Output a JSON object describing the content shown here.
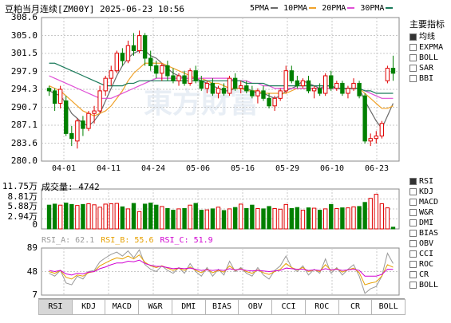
{
  "title": "豆粕当月连续[ZM00Y] 2025-06-23 10:56",
  "ma_legend": [
    {
      "label": "5PMA",
      "color": "#6a6a6a"
    },
    {
      "label": "10PMA",
      "color": "#f0a22a"
    },
    {
      "label": "20PMA",
      "color": "#e04fd6"
    },
    {
      "label": "30PMA",
      "color": "#1a7a5a"
    }
  ],
  "colors": {
    "up": "#e00000",
    "down": "#008000",
    "grid": "#c8c8c8",
    "axis": "#888"
  },
  "indicators_header": "主要指标",
  "indicators": [
    {
      "label": "均线",
      "checked": true
    },
    {
      "label": "EXPMA",
      "checked": false
    },
    {
      "label": "BOLL",
      "checked": false
    },
    {
      "label": "SAR",
      "checked": false
    },
    {
      "label": "BBI",
      "checked": false
    }
  ],
  "sub_indicators": [
    {
      "label": "RSI",
      "checked": true
    },
    {
      "label": "KDJ",
      "checked": false
    },
    {
      "label": "MACD",
      "checked": false
    },
    {
      "label": "W&R",
      "checked": false
    },
    {
      "label": "DMI",
      "checked": false
    },
    {
      "label": "BIAS",
      "checked": false
    },
    {
      "label": "OBV",
      "checked": false
    },
    {
      "label": "CCI",
      "checked": false
    },
    {
      "label": "ROC",
      "checked": false
    },
    {
      "label": "CR",
      "checked": false
    },
    {
      "label": "BOLL",
      "checked": false
    }
  ],
  "price_axis": [
    "308.6",
    "305.0",
    "301.5",
    "297.9",
    "294.3",
    "290.7",
    "287.1",
    "283.6",
    "280.0"
  ],
  "date_axis": [
    "04-01",
    "04-11",
    "04-24",
    "05-06",
    "05-16",
    "05-29",
    "06-10",
    "06-23"
  ],
  "volume_axis": [
    "11.75万",
    "8.81万",
    "5.88万",
    "2.94万",
    "0"
  ],
  "volume_label": "成交量: 4742",
  "rsi_axis": [
    "89",
    "48",
    "7"
  ],
  "rsi_legend": [
    {
      "label": "RSI_A: 62.1",
      "color": "#999999"
    },
    {
      "label": "RSI_B: 55.6",
      "color": "#e6a000"
    },
    {
      "label": "RSI_C: 51.9",
      "color": "#d100d1"
    }
  ],
  "tabs": [
    "RSI",
    "KDJ",
    "MACD",
    "W&R",
    "DMI",
    "BIAS",
    "OBV",
    "CCI",
    "ROC",
    "CR",
    "BOLL"
  ],
  "chart_data": {
    "type": "candlestick",
    "price_range": [
      280.0,
      308.6
    ],
    "candles": [
      [
        294.5,
        295.0,
        293.0,
        294.0
      ],
      [
        294.0,
        294.5,
        290.0,
        291.5
      ],
      [
        291.5,
        295.0,
        290.5,
        294.3
      ],
      [
        292.0,
        293.0,
        285.0,
        285.5
      ],
      [
        285.5,
        287.0,
        283.0,
        284.5
      ],
      [
        284.0,
        288.5,
        282.5,
        288.0
      ],
      [
        288.0,
        289.0,
        285.0,
        286.5
      ],
      [
        286.5,
        290.0,
        286.0,
        289.5
      ],
      [
        289.5,
        291.0,
        287.5,
        290.0
      ],
      [
        290.0,
        295.0,
        289.5,
        294.0
      ],
      [
        294.0,
        297.0,
        293.0,
        296.5
      ],
      [
        296.5,
        299.0,
        295.0,
        298.0
      ],
      [
        298.0,
        302.0,
        297.5,
        301.5
      ],
      [
        301.5,
        302.5,
        299.0,
        300.0
      ],
      [
        300.0,
        304.0,
        299.5,
        303.0
      ],
      [
        303.0,
        305.5,
        301.0,
        302.0
      ],
      [
        302.0,
        306.0,
        301.5,
        305.0
      ],
      [
        305.0,
        305.5,
        299.0,
        300.5
      ],
      [
        300.5,
        302.0,
        298.0,
        299.0
      ],
      [
        299.0,
        300.0,
        296.5,
        297.5
      ],
      [
        297.5,
        299.5,
        296.0,
        299.0
      ],
      [
        299.0,
        300.0,
        296.0,
        297.0
      ],
      [
        297.0,
        298.5,
        295.5,
        296.0
      ],
      [
        296.0,
        297.5,
        295.0,
        297.0
      ],
      [
        297.0,
        298.0,
        295.0,
        295.5
      ],
      [
        295.5,
        298.5,
        295.0,
        298.0
      ],
      [
        298.0,
        299.0,
        295.5,
        296.0
      ],
      [
        296.0,
        297.0,
        294.0,
        294.5
      ],
      [
        294.5,
        296.0,
        293.5,
        295.5
      ],
      [
        295.5,
        296.5,
        293.0,
        293.5
      ],
      [
        293.5,
        295.0,
        292.5,
        294.5
      ],
      [
        294.5,
        295.5,
        293.0,
        293.5
      ],
      [
        293.5,
        297.0,
        293.0,
        296.5
      ],
      [
        296.5,
        297.5,
        294.0,
        294.5
      ],
      [
        294.5,
        296.0,
        293.5,
        295.0
      ],
      [
        295.0,
        296.0,
        293.5,
        294.0
      ],
      [
        294.0,
        295.0,
        292.5,
        293.0
      ],
      [
        293.0,
        294.5,
        291.5,
        294.0
      ],
      [
        294.0,
        295.0,
        292.0,
        292.5
      ],
      [
        292.5,
        293.5,
        290.5,
        291.0
      ],
      [
        291.0,
        293.0,
        290.0,
        292.5
      ],
      [
        292.5,
        294.5,
        292.0,
        294.0
      ],
      [
        294.0,
        299.0,
        293.5,
        298.0
      ],
      [
        298.0,
        299.0,
        295.5,
        296.0
      ],
      [
        296.0,
        297.0,
        294.5,
        295.0
      ],
      [
        295.0,
        296.5,
        294.5,
        296.0
      ],
      [
        296.0,
        297.0,
        293.5,
        294.0
      ],
      [
        294.0,
        295.0,
        292.5,
        294.5
      ],
      [
        294.5,
        295.5,
        293.0,
        293.5
      ],
      [
        293.5,
        297.5,
        293.0,
        297.0
      ],
      [
        297.0,
        298.0,
        294.0,
        294.5
      ],
      [
        294.5,
        296.0,
        294.0,
        295.5
      ],
      [
        295.5,
        296.0,
        293.0,
        293.5
      ],
      [
        293.5,
        295.0,
        292.5,
        294.5
      ],
      [
        294.5,
        296.5,
        294.0,
        295.5
      ],
      [
        295.5,
        296.0,
        292.5,
        293.0
      ],
      [
        293.0,
        293.5,
        283.5,
        284.0
      ],
      [
        284.0,
        285.5,
        283.0,
        284.5
      ],
      [
        284.5,
        286.0,
        283.5,
        285.0
      ],
      [
        285.0,
        288.0,
        284.5,
        287.5
      ],
      [
        296.0,
        299.0,
        295.5,
        298.5
      ],
      [
        298.5,
        301.0,
        296.0,
        297.5
      ]
    ],
    "ma": {
      "5PMA": [
        294.0,
        293.5,
        293.0,
        291.5,
        289.5,
        288.5,
        287.5,
        287.0,
        288.0,
        289.5,
        292.0,
        294.5,
        297.0,
        299.0,
        300.5,
        301.5,
        302.0,
        302.0,
        301.0,
        300.5,
        299.5,
        298.5,
        297.5,
        297.0,
        296.5,
        296.5,
        296.5,
        296.0,
        295.5,
        295.0,
        294.5,
        294.0,
        294.0,
        294.5,
        294.5,
        294.5,
        294.0,
        293.5,
        293.5,
        293.0,
        292.5,
        293.0,
        294.0,
        294.5,
        295.0,
        296.0,
        295.5,
        295.0,
        294.5,
        295.0,
        295.0,
        294.5,
        294.5,
        294.5,
        294.5,
        294.5,
        292.0,
        290.0,
        288.0,
        286.5,
        289.0,
        291.5
      ],
      "10PMA": [
        295.0,
        294.5,
        294.0,
        293.0,
        292.0,
        291.0,
        290.0,
        289.5,
        289.0,
        289.5,
        290.0,
        291.0,
        292.5,
        294.0,
        296.0,
        297.5,
        298.5,
        299.5,
        299.5,
        299.5,
        299.5,
        299.0,
        298.5,
        298.0,
        297.5,
        297.0,
        296.5,
        296.5,
        296.0,
        295.5,
        295.5,
        295.0,
        294.5,
        294.5,
        294.5,
        294.0,
        294.0,
        294.0,
        293.5,
        293.5,
        293.5,
        293.5,
        293.5,
        294.0,
        294.5,
        294.5,
        294.5,
        294.5,
        294.5,
        294.5,
        294.5,
        294.5,
        294.5,
        294.5,
        294.5,
        294.5,
        293.5,
        292.5,
        291.5,
        290.5,
        290.5,
        291.0
      ],
      "20PMA": [
        297.0,
        296.5,
        296.0,
        295.5,
        295.0,
        294.5,
        294.0,
        293.5,
        293.0,
        292.5,
        292.5,
        292.5,
        293.0,
        293.5,
        294.0,
        294.5,
        295.0,
        295.5,
        296.0,
        296.5,
        296.5,
        296.5,
        296.5,
        296.5,
        296.5,
        296.5,
        296.5,
        296.5,
        296.5,
        296.5,
        296.5,
        296.5,
        296.5,
        296.0,
        296.0,
        296.0,
        295.5,
        295.5,
        295.0,
        295.0,
        294.5,
        294.5,
        294.5,
        294.5,
        294.5,
        294.5,
        294.5,
        294.5,
        294.5,
        294.5,
        294.5,
        294.5,
        294.5,
        294.5,
        294.5,
        294.5,
        294.0,
        293.5,
        293.0,
        292.5,
        292.5,
        292.5
      ],
      "30PMA": [
        299.5,
        299.5,
        299.0,
        298.5,
        298.0,
        297.5,
        297.0,
        296.5,
        296.0,
        295.5,
        295.0,
        295.0,
        295.0,
        295.0,
        295.5,
        295.5,
        296.0,
        296.0,
        296.0,
        296.0,
        296.0,
        296.0,
        296.0,
        296.0,
        296.0,
        296.0,
        296.0,
        296.0,
        296.0,
        296.0,
        296.0,
        296.0,
        296.0,
        296.0,
        296.0,
        295.5,
        295.5,
        295.5,
        295.5,
        295.0,
        295.0,
        295.0,
        295.0,
        295.0,
        295.0,
        295.0,
        295.0,
        295.0,
        295.0,
        295.0,
        295.0,
        294.5,
        294.5,
        294.5,
        294.5,
        294.5,
        294.0,
        294.0,
        293.5,
        293.5,
        293.5,
        293.5
      ]
    },
    "volume": [
      7.0,
      7.3,
      7.0,
      7.6,
      7.2,
      6.9,
      7.2,
      7.4,
      7.1,
      6.4,
      7.3,
      7.4,
      7.5,
      6.5,
      5.9,
      7.5,
      5.1,
      7.3,
      7.6,
      7.0,
      6.6,
      6.0,
      5.5,
      5.9,
      6.0,
      7.0,
      7.5,
      5.5,
      5.6,
      5.9,
      6.4,
      5.4,
      5.9,
      6.3,
      7.3,
      6.0,
      7.0,
      6.0,
      5.9,
      6.6,
      6.0,
      5.8,
      7.2,
      6.0,
      6.3,
      5.5,
      6.2,
      6.1,
      5.5,
      5.9,
      7.2,
      6.0,
      6.2,
      6.2,
      6.5,
      6.6,
      7.8,
      9.0,
      10.2,
      7.4,
      6.2,
      0.5
    ],
    "rsi": {
      "RSI_A": [
        45,
        40,
        50,
        28,
        25,
        40,
        35,
        48,
        50,
        65,
        72,
        78,
        82,
        75,
        84,
        72,
        86,
        60,
        52,
        48,
        58,
        50,
        45,
        55,
        45,
        62,
        48,
        40,
        55,
        40,
        52,
        42,
        66,
        48,
        55,
        45,
        40,
        55,
        42,
        35,
        50,
        58,
        75,
        55,
        48,
        58,
        42,
        52,
        45,
        70,
        45,
        55,
        42,
        52,
        60,
        40,
        10,
        18,
        22,
        40,
        80,
        62
      ],
      "RSI_B": [
        48,
        45,
        50,
        38,
        35,
        42,
        40,
        46,
        48,
        58,
        63,
        68,
        72,
        70,
        75,
        70,
        77,
        64,
        58,
        55,
        58,
        54,
        50,
        54,
        50,
        56,
        50,
        46,
        52,
        46,
        50,
        47,
        58,
        50,
        53,
        48,
        45,
        51,
        46,
        43,
        48,
        52,
        62,
        55,
        51,
        55,
        48,
        51,
        48,
        60,
        50,
        53,
        47,
        51,
        54,
        46,
        25,
        28,
        30,
        40,
        60,
        55.6
      ],
      "RSI_C": [
        50,
        48,
        50,
        44,
        42,
        45,
        44,
        47,
        48,
        53,
        56,
        60,
        63,
        63,
        66,
        65,
        68,
        62,
        59,
        57,
        57,
        55,
        53,
        54,
        53,
        54,
        52,
        50,
        51,
        50,
        51,
        50,
        53,
        51,
        52,
        50,
        49,
        50,
        49,
        48,
        49,
        50,
        54,
        53,
        52,
        52,
        50,
        51,
        50,
        53,
        51,
        52,
        50,
        51,
        52,
        50,
        40,
        40,
        40,
        43,
        52,
        51.9
      ]
    },
    "volume_range": [
      0,
      11.75
    ],
    "rsi_range": [
      7,
      89
    ]
  }
}
